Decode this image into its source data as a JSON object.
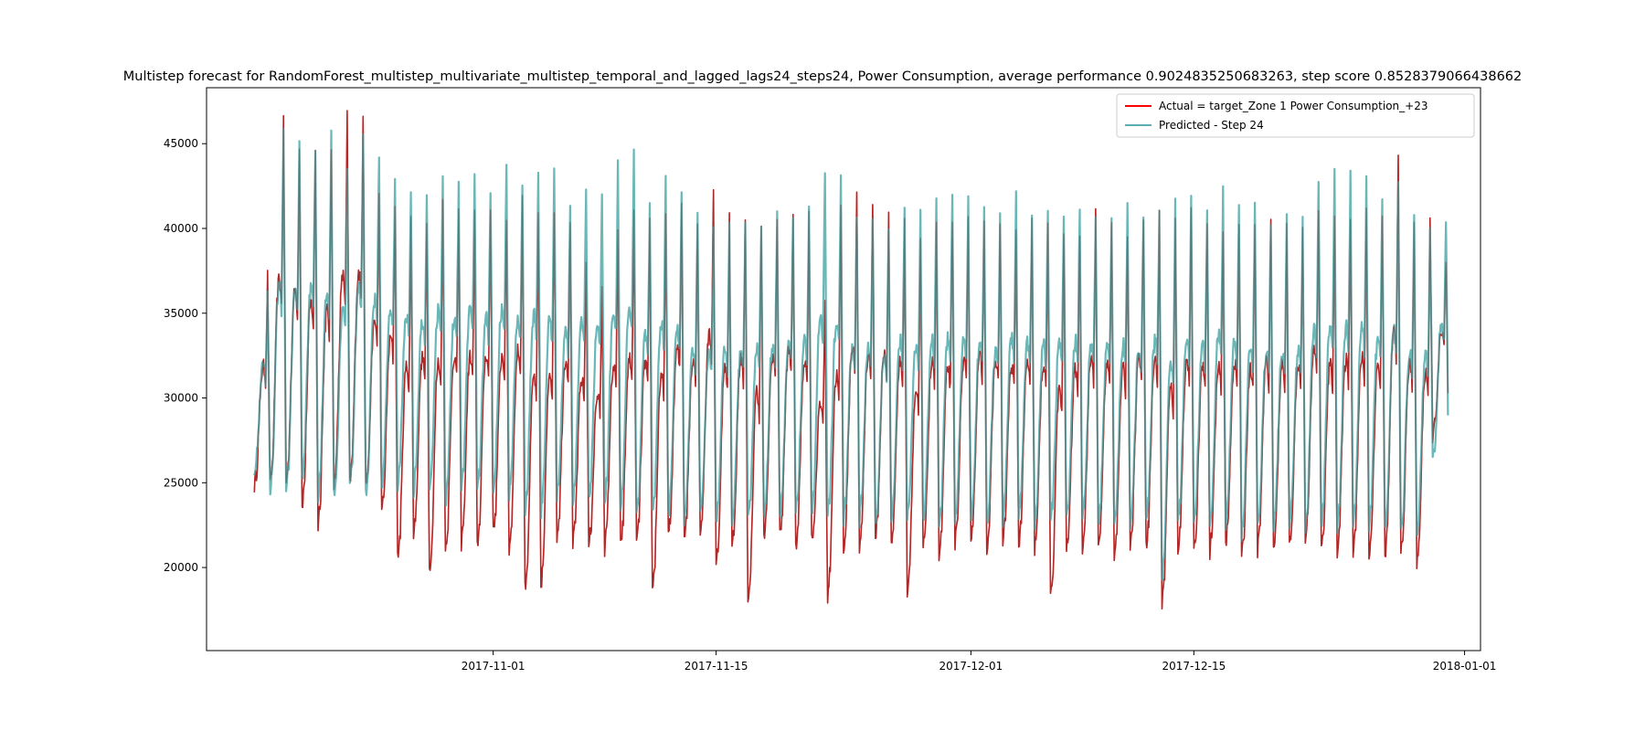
{
  "chart_data": {
    "type": "line",
    "title": "Multistep forecast for RandomForest_multistep_multivariate_multistep_temporal_and_lagged_lags24_steps24, Power Consumption, average performance 0.9024835250683263, step score 0.8528379066438662",
    "xlabel": "",
    "ylabel": "",
    "xlim": [
      "2017-10-14",
      "2018-01-02"
    ],
    "ylim": [
      15100,
      48300
    ],
    "grid": false,
    "legend_position": "top-right",
    "x_ticks": [
      "2017-11-01",
      "2017-11-15",
      "2017-12-01",
      "2017-12-15",
      "2018-01-01"
    ],
    "y_ticks": [
      20000,
      25000,
      30000,
      35000,
      40000,
      45000
    ],
    "sampling": "hourly, one daily cycle per day",
    "series": [
      {
        "name": "Actual = target_Zone 1 Power Consumption_+23",
        "color": "#ff0000",
        "x_start": "2017-10-17",
        "x_end": "2017-12-30",
        "daily_peaks": [
          37200,
          46200,
          45000,
          44800,
          44800,
          46600,
          46800,
          41800,
          41500,
          40500,
          40200,
          41400,
          41200,
          40800,
          41200,
          40500,
          41700,
          40800,
          41300,
          40300,
          38400,
          36800,
          40000,
          40700,
          40200,
          41000,
          41400,
          40400,
          42600,
          40700,
          40800,
          40200,
          40800,
          41100,
          40700,
          35600,
          41300,
          42200,
          41300,
          40800,
          40200,
          39300,
          40400,
          40300,
          40300,
          40700,
          40700,
          39800,
          40300,
          40200,
          39900,
          39800,
          40800,
          40200,
          39900,
          40900,
          40700,
          40400,
          40800,
          40600,
          39900,
          40300,
          40200,
          40500,
          40200,
          40200,
          41200,
          40300,
          40800,
          41000,
          40600,
          44000,
          40500,
          40300,
          38200
        ],
        "daily_troughs": [
          24800,
          24800,
          24900,
          23500,
          22500,
          24800,
          24900,
          24800,
          23100,
          20500,
          22000,
          19800,
          21000,
          21400,
          21200,
          22000,
          21000,
          18700,
          18800,
          21800,
          21300,
          21300,
          21100,
          21200,
          21400,
          18600,
          21700,
          21800,
          21900,
          20000,
          21100,
          17600,
          21600,
          21800,
          21100,
          21600,
          18200,
          21000,
          21100,
          21700,
          21500,
          18600,
          21000,
          20600,
          21400,
          21600,
          21000,
          21400,
          21300,
          21100,
          18100,
          20900,
          21200,
          21200,
          20800,
          21400,
          21200,
          17800,
          21000,
          20800,
          20900,
          21300,
          20500,
          21000,
          21100,
          21100,
          21800,
          20900,
          21000,
          21000,
          20600,
          20600,
          20800,
          20100,
          27800
        ]
      },
      {
        "name": "Predicted - Step 24",
        "color": "#5aafb0",
        "x_start": "2017-10-17",
        "x_end": "2017-12-30",
        "daily_peaks": [
          36500,
          46100,
          45100,
          45000,
          45800,
          43600,
          45700,
          44500,
          43200,
          42400,
          42000,
          43100,
          43000,
          43500,
          42500,
          43400,
          42700,
          43600,
          43400,
          41200,
          42600,
          42200,
          43700,
          44400,
          41600,
          43100,
          42300,
          40600,
          40000,
          40500,
          40300,
          40300,
          41000,
          40800,
          41100,
          43500,
          43300,
          40700,
          40600,
          40100,
          41200,
          41000,
          41400,
          41900,
          41600,
          41300,
          40900,
          41800,
          41000,
          41200,
          41000,
          41400,
          41100,
          40900,
          41200,
          40800,
          41500,
          41700,
          41800,
          40900,
          42400,
          41700,
          41500,
          40300,
          40400,
          40300,
          43000,
          43300,
          43300,
          43300,
          41900,
          43000,
          40800,
          40400,
          40500
        ],
        "daily_troughs": [
          25800,
          24400,
          24500,
          25200,
          24000,
          24200,
          24600,
          24200,
          24800,
          24900,
          24500,
          24800,
          23700,
          24600,
          24300,
          24600,
          24200,
          23500,
          23200,
          24200,
          23800,
          24000,
          23800,
          23600,
          23100,
          23000,
          23000,
          22700,
          23000,
          22800,
          22600,
          22900,
          22900,
          23000,
          23400,
          23200,
          22900,
          22700,
          22800,
          22500,
          22900,
          22800,
          22700,
          22300,
          22800,
          22700,
          22500,
          22800,
          22900,
          22600,
          22700,
          22700,
          22600,
          22500,
          22400,
          22400,
          22600,
          19200,
          22500,
          22700,
          22400,
          22500,
          22000,
          22400,
          22400,
          22700,
          22300,
          22400,
          22200,
          22300,
          22400,
          22000,
          22100,
          21900,
          26300
        ]
      }
    ]
  }
}
